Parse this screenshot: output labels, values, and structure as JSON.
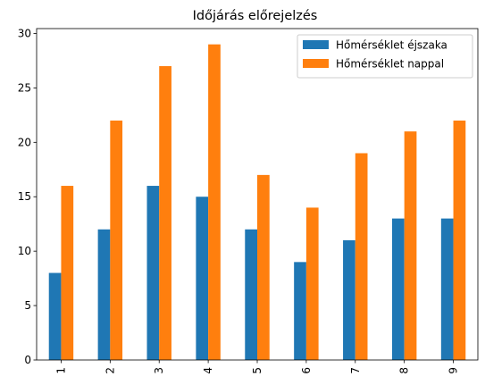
{
  "chart_data": {
    "type": "bar",
    "title": "Időjárás előrejelzés",
    "xlabel": "",
    "ylabel": "",
    "categories": [
      "1",
      "2",
      "3",
      "4",
      "5",
      "6",
      "7",
      "8",
      "9"
    ],
    "series": [
      {
        "name": "Hőmérséklet éjszaka",
        "color": "#1f77b4",
        "values": [
          8,
          12,
          16,
          15,
          12,
          9,
          11,
          13,
          13
        ]
      },
      {
        "name": "Hőmérséklet nappal",
        "color": "#ff7f0e",
        "values": [
          16,
          22,
          27,
          29,
          17,
          14,
          19,
          21,
          22
        ]
      }
    ],
    "ylim": [
      0,
      30.45
    ],
    "yticks": [
      0,
      5,
      10,
      15,
      20,
      25,
      30
    ],
    "grid": false,
    "legend_position": "top-right",
    "x_tick_rotation": "vertical"
  }
}
